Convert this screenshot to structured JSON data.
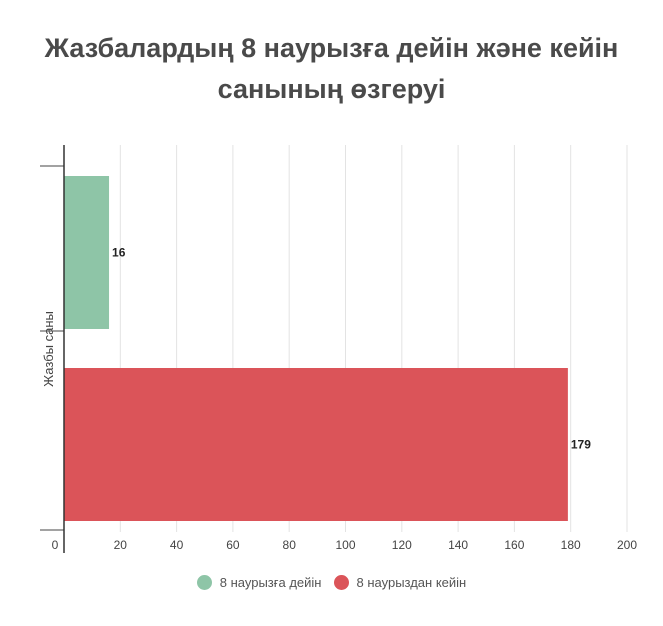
{
  "title_lines": [
    "Жазбалардың 8 наурызға дейін және кейін",
    "санының өзгеруі"
  ],
  "chart_data": {
    "type": "bar",
    "orientation": "horizontal",
    "title": "Жазбалардың 8 наурызға дейін және кейін санының өзгеруі",
    "ylabel": "Жазбы саны",
    "xlabel": "",
    "xlim": [
      0,
      200
    ],
    "xticks": [
      "0",
      "20",
      "40",
      "60",
      "80",
      "100",
      "120",
      "140",
      "160",
      "180",
      "200"
    ],
    "grid": true,
    "legend_position": "bottom",
    "series": [
      {
        "name": "8 наурызға дейін",
        "value": 16,
        "label": "16",
        "color": "#8ec5a7"
      },
      {
        "name": "8 наурыздан кейін",
        "value": 179,
        "label": "179",
        "color": "#db5459"
      }
    ]
  }
}
